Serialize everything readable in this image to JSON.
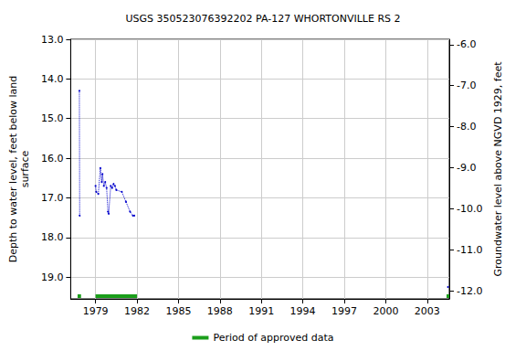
{
  "chart_data": {
    "type": "line",
    "title": "USGS 350523076392202 PA-127 WHORTONVILLE RS 2",
    "y_label": "Depth to water level, feet below land\nsurface",
    "y2_label": "Groundwater level above NGVD 1929, feet",
    "x": [
      1977.83,
      1977.85,
      null,
      1979.0,
      1979.05,
      1979.2,
      1979.35,
      1979.45,
      1979.5,
      1979.6,
      1979.7,
      1979.8,
      1979.9,
      1979.95,
      1980.1,
      1980.2,
      1980.3,
      1980.4,
      1980.5,
      1980.9,
      1981.2,
      1981.5,
      1981.7,
      1981.8,
      null,
      2004.5
    ],
    "series": [
      {
        "values": [
          14.3,
          17.45,
          null,
          16.7,
          16.85,
          16.9,
          16.25,
          16.6,
          16.4,
          16.7,
          16.6,
          16.75,
          17.35,
          17.4,
          16.7,
          16.75,
          16.65,
          16.7,
          16.8,
          16.85,
          17.1,
          17.35,
          17.45,
          17.45,
          null,
          19.25
        ],
        "color": "#0000cc",
        "line_style": "dotted",
        "marker": "circle"
      }
    ],
    "approved_periods": {
      "name": "Period of approved data",
      "color": "#1a9e1a",
      "ranges": [
        [
          1977.7,
          1977.95
        ],
        [
          1979.0,
          1982.0
        ],
        [
          2004.4,
          2004.6
        ]
      ]
    },
    "xlim": [
      1977.2,
      2004.6
    ],
    "xticks": [
      1979,
      1982,
      1985,
      1988,
      1991,
      1994,
      1997,
      2000,
      2003
    ],
    "ylim": [
      13.0,
      19.55
    ],
    "yticks": [
      {
        "value": 13,
        "label": "13.0"
      },
      {
        "value": 14,
        "label": "14.0"
      },
      {
        "value": 15,
        "label": "15.0"
      },
      {
        "value": 16,
        "label": "16.0"
      },
      {
        "value": 17,
        "label": "17.0"
      },
      {
        "value": 18,
        "label": "18.0"
      },
      {
        "value": 19,
        "label": "19.0"
      }
    ],
    "y2lim": [
      -12.2,
      -5.87
    ],
    "y2ticks": [
      {
        "value": -6,
        "label": "-6.0"
      },
      {
        "value": -7,
        "label": "-7.0"
      },
      {
        "value": -8,
        "label": "-8.0"
      },
      {
        "value": -9,
        "label": "-9.0"
      },
      {
        "value": -10,
        "label": "-10.0"
      },
      {
        "value": -11,
        "label": "-11.0"
      },
      {
        "value": -12,
        "label": "-12.0"
      }
    ],
    "grid": true,
    "legend": "bottom"
  }
}
